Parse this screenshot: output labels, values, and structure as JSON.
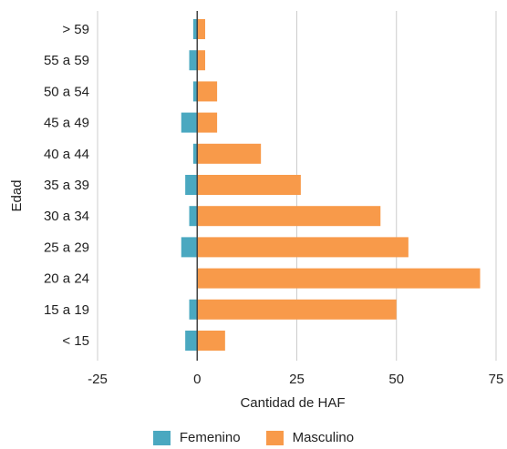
{
  "chart_data": {
    "type": "bar",
    "orientation": "horizontal",
    "stacked": "diverging",
    "categories": [
      "> 59",
      "55 a 59",
      "50 a 54",
      "45 a 49",
      "40 a 44",
      "35 a 39",
      "30 a 34",
      "25 a 29",
      "20 a 24",
      "15 a 19",
      "< 15"
    ],
    "series": [
      {
        "name": "Femenino",
        "color": "#4aa8c0",
        "values": [
          -1,
          -2,
          -1,
          -4,
          -1,
          -3,
          -2,
          -4,
          0,
          -2,
          -3
        ]
      },
      {
        "name": "Masculino",
        "color": "#f89a4a",
        "values": [
          2,
          2,
          5,
          5,
          16,
          26,
          46,
          53,
          71,
          50,
          7
        ]
      }
    ],
    "xlabel": "Cantidad de HAF",
    "ylabel": "Edad",
    "xlim": [
      -25,
      75
    ],
    "xticks": [
      "-25",
      "0",
      "25",
      "50",
      "75"
    ],
    "grid": true,
    "legend_position": "bottom"
  }
}
